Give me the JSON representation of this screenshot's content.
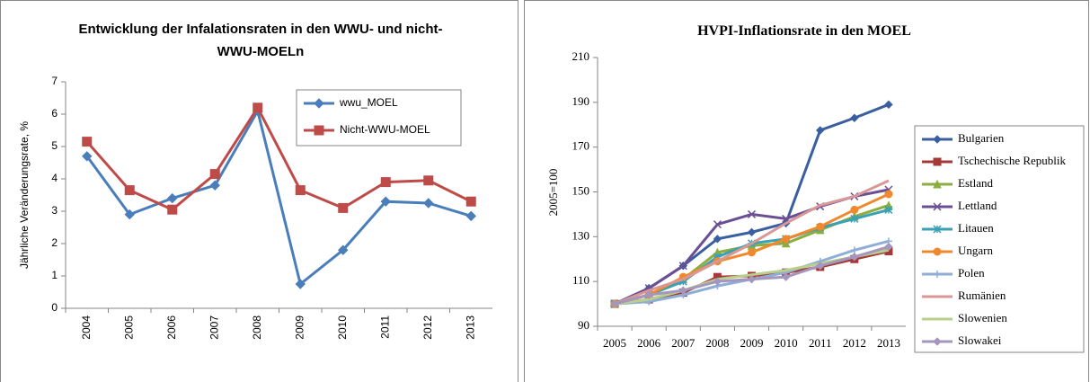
{
  "chart_data": [
    {
      "type": "line",
      "title": "Entwicklung der Infalationsraten in den WWU- und nicht-WWU-MOELn",
      "y_label": "Jährliche Veränderungsrate, %",
      "categories": [
        "2004",
        "2005",
        "2006",
        "2007",
        "2008",
        "2009",
        "2010",
        "2011",
        "2012",
        "2013"
      ],
      "ylim": [
        0,
        7
      ],
      "yticks": [
        0,
        1,
        2,
        3,
        4,
        5,
        6,
        7
      ],
      "series": [
        {
          "name": "wwu_MOEL",
          "color": "#4a7ebb",
          "marker": "diamond",
          "values": [
            4.7,
            2.9,
            3.4,
            3.8,
            6.1,
            0.75,
            1.8,
            3.3,
            3.25,
            2.85
          ]
        },
        {
          "name": "Nicht-WWU-MOEL",
          "color": "#be4b48",
          "marker": "square",
          "values": [
            5.15,
            3.65,
            3.05,
            4.15,
            6.2,
            3.65,
            3.1,
            3.9,
            3.95,
            3.3
          ]
        }
      ]
    },
    {
      "type": "line",
      "title": "HVPI-Inflationsrate in den MOEL",
      "y_label": "2005=100",
      "categories": [
        "2005",
        "2006",
        "2007",
        "2008",
        "2009",
        "2010",
        "2011",
        "2012",
        "2013"
      ],
      "ylim": [
        90,
        210
      ],
      "yticks": [
        90,
        110,
        130,
        150,
        170,
        190,
        210
      ],
      "series": [
        {
          "name": "Bulgarien",
          "color": "#3a5fa0",
          "marker": "diamond",
          "values": [
            100,
            107,
            117,
            129,
            132,
            136,
            177.5,
            183,
            189
          ]
        },
        {
          "name": "Tschechische Republik",
          "color": "#a33a38",
          "marker": "square",
          "values": [
            100,
            102,
            105,
            112,
            112.5,
            114,
            116.5,
            120,
            123.5
          ]
        },
        {
          "name": "Estland",
          "color": "#8cad3f",
          "marker": "triangle",
          "values": [
            100,
            104,
            111,
            123,
            126,
            127,
            133,
            139,
            144
          ]
        },
        {
          "name": "Lettland",
          "color": "#6b4f94",
          "marker": "x",
          "values": [
            100,
            107,
            117,
            135.5,
            140,
            138,
            143.5,
            148,
            151
          ]
        },
        {
          "name": "Litauen",
          "color": "#3aa0b5",
          "marker": "star",
          "values": [
            100,
            104,
            110,
            121,
            127,
            129,
            134,
            138,
            142
          ]
        },
        {
          "name": "Ungarn",
          "color": "#f0892e",
          "marker": "circle",
          "values": [
            100,
            104,
            112,
            119,
            123,
            129,
            134.5,
            142,
            149
          ]
        },
        {
          "name": "Polen",
          "color": "#8daed6",
          "marker": "plus",
          "values": [
            100,
            101,
            104,
            108,
            111,
            114,
            119,
            124,
            128
          ]
        },
        {
          "name": "Rumänien",
          "color": "#d99796",
          "marker": "none",
          "values": [
            100,
            106,
            111,
            119,
            127,
            136,
            144,
            148,
            155
          ]
        },
        {
          "name": "Slowenien",
          "color": "#b9cf8c",
          "marker": "none",
          "values": [
            100,
            102,
            106,
            111,
            113,
            115,
            118,
            121,
            124
          ]
        },
        {
          "name": "Slowakei",
          "color": "#a596be",
          "marker": "diamond",
          "values": [
            100,
            104,
            106,
            110,
            111,
            112,
            117,
            121,
            125.5
          ]
        }
      ]
    }
  ]
}
